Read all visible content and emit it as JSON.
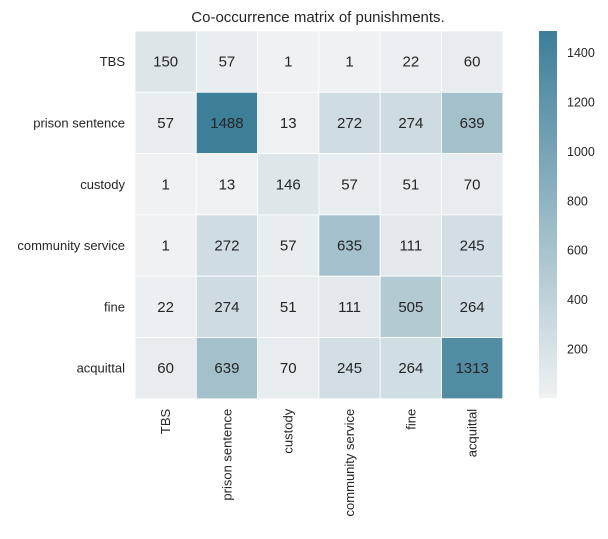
{
  "chart_data": {
    "type": "heatmap",
    "title": "Co-occurrence matrix of punishments.",
    "rows": [
      "TBS",
      "prison sentence",
      "custody",
      "community service",
      "fine",
      "acquittal"
    ],
    "columns": [
      "TBS",
      "prison sentence",
      "custody",
      "community service",
      "fine",
      "acquittal"
    ],
    "values": [
      [
        150,
        57,
        1,
        1,
        22,
        60
      ],
      [
        57,
        1488,
        13,
        272,
        274,
        639
      ],
      [
        1,
        13,
        146,
        57,
        51,
        70
      ],
      [
        1,
        272,
        57,
        635,
        111,
        245
      ],
      [
        22,
        274,
        51,
        111,
        505,
        264
      ],
      [
        60,
        639,
        70,
        245,
        264,
        1313
      ]
    ],
    "colorbar": {
      "min": 1,
      "max": 1488,
      "ticks": [
        200,
        400,
        600,
        800,
        1000,
        1200,
        1400
      ],
      "color_low": "#eff1f2",
      "color_high": "#3d7e98"
    },
    "annotations": true,
    "grid": false
  }
}
